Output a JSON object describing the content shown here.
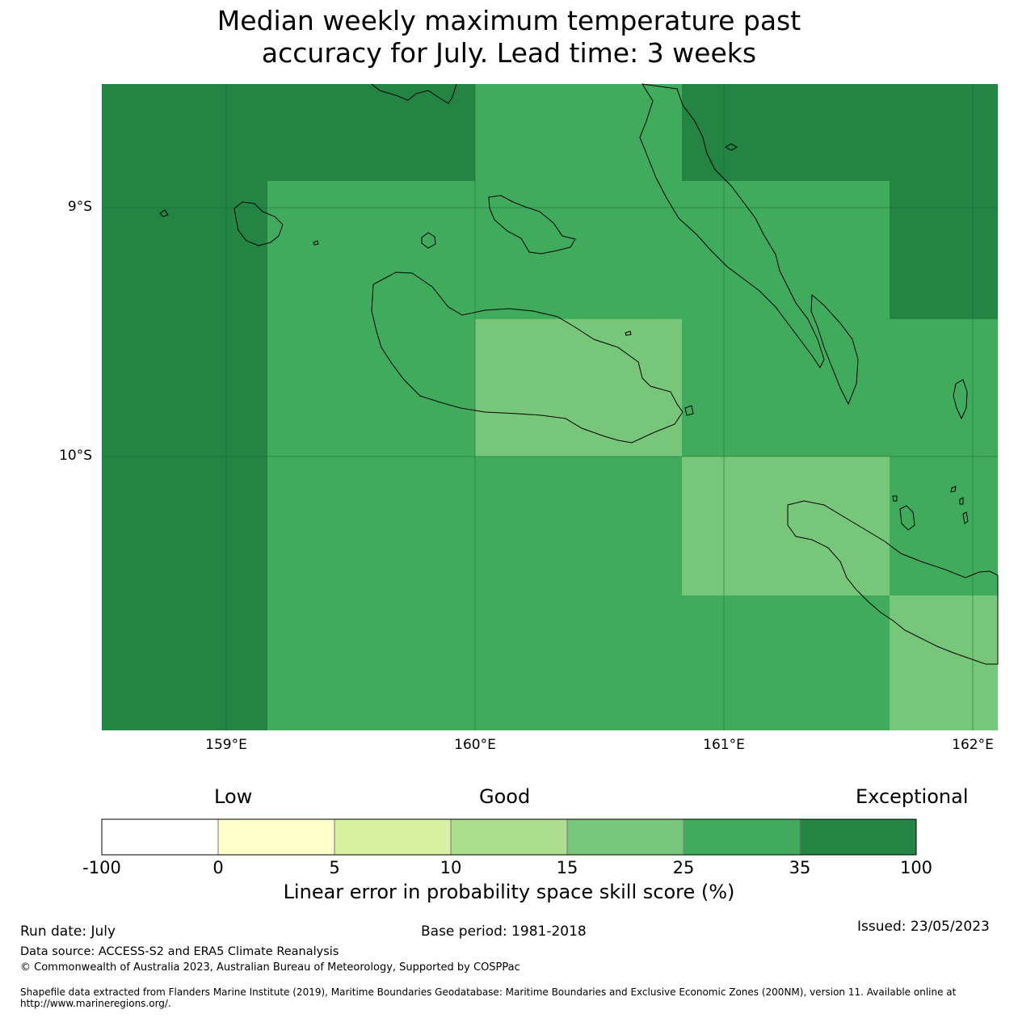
{
  "title_line1": "Median weekly maximum temperature past",
  "title_line2": "accuracy for July. Lead time: 3 weeks",
  "map": {
    "lat_labels": [
      "9°S",
      "10°S"
    ],
    "lon_labels": [
      "159°E",
      "160°E",
      "161°E",
      "162°E"
    ],
    "lon_range": [
      158.5,
      162.1
    ],
    "lat_range": [
      -9.5,
      -8.5
    ],
    "skill_classes": {
      "low_light": "#f5f5f5",
      "mid": "#78c679",
      "good": "#41ab5d",
      "exceptional": "#238443"
    }
  },
  "colorbar": {
    "categories": [
      "Low",
      "Good",
      "Exceptional"
    ],
    "ticks": [
      "-100",
      "0",
      "5",
      "10",
      "15",
      "25",
      "35",
      "100"
    ],
    "colors": [
      "#ffffff",
      "#ffffcc",
      "#d9f0a3",
      "#addd8e",
      "#78c679",
      "#41ab5d",
      "#238443"
    ],
    "label": "Linear error in probability space skill score (%)"
  },
  "footer": {
    "run_date": "Run date: July",
    "base_period": "Base period: 1981-2018",
    "issued": "Issued: 23/05/2023",
    "data_source": "Data source: ACCESS-S2 and ERA5 Climate Reanalysis",
    "copyright": "© Commonwealth of Australia 2023, Australian Bureau of Meteorology, Supported by COSPPac",
    "shapefile_line1": "Shapefile data extracted from Flanders Marine Institute (2019), Maritime Boundaries Geodatabase: Maritime Boundaries and Exclusive Economic Zones (200NM), version 11. Available online at",
    "shapefile_line2": "http://www.marineregions.org/."
  }
}
